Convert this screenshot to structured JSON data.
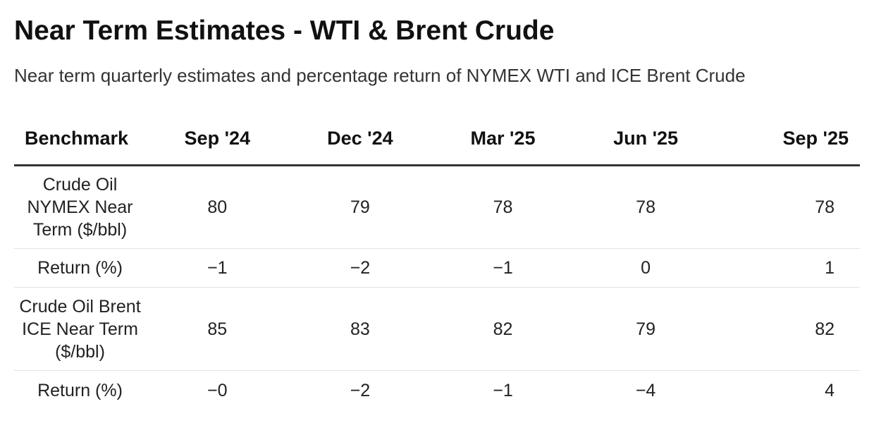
{
  "chart_data": {
    "type": "table",
    "title": "Near Term Estimates - WTI & Brent Crude",
    "subtitle": "Near term quarterly estimates and percentage return of NYMEX WTI and ICE Brent Crude",
    "columns": [
      "Benchmark",
      "Sep '24",
      "Dec '24",
      "Mar '25",
      "Jun '25",
      "Sep '25"
    ],
    "rows": [
      {
        "benchmark": "Crude Oil NYMEX Near Term ($/bbl)",
        "benchmark_lines": [
          "Crude Oil",
          "NYMEX Near",
          "Term ($/bbl)"
        ],
        "values": [
          "80",
          "79",
          "78",
          "78",
          "78"
        ]
      },
      {
        "benchmark": "Return (%)",
        "benchmark_lines": [
          "Return (%)"
        ],
        "values": [
          "−1",
          "−2",
          "−1",
          "0",
          "1"
        ]
      },
      {
        "benchmark": "Crude Oil Brent ICE Near Term ($/bbl)",
        "benchmark_lines": [
          "Crude Oil Brent",
          "ICE Near Term",
          "($/bbl)"
        ],
        "values": [
          "85",
          "83",
          "82",
          "79",
          "82"
        ]
      },
      {
        "benchmark": "Return (%)",
        "benchmark_lines": [
          "Return (%)"
        ],
        "values": [
          "−0",
          "−2",
          "−1",
          "−4",
          "4"
        ]
      }
    ]
  },
  "colors": {
    "header_rule": "#333333",
    "row_rule": "#e3e3e3",
    "text": "#222222"
  }
}
